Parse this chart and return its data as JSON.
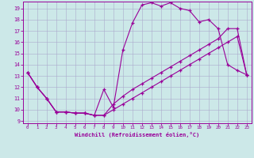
{
  "xlabel": "Windchill (Refroidissement éolien,°C)",
  "bg_color": "#cce8e8",
  "line_color": "#990099",
  "grid_color": "#aaaacc",
  "xlim": [
    -0.5,
    23.5
  ],
  "ylim": [
    8.8,
    19.6
  ],
  "xticks": [
    0,
    1,
    2,
    3,
    4,
    5,
    6,
    7,
    8,
    9,
    10,
    11,
    12,
    13,
    14,
    15,
    16,
    17,
    18,
    19,
    20,
    21,
    22,
    23
  ],
  "yticks": [
    9,
    10,
    11,
    12,
    13,
    14,
    15,
    16,
    17,
    18,
    19
  ],
  "line1": {
    "x": [
      0,
      1,
      2,
      3,
      4,
      5,
      6,
      7,
      8,
      9,
      10,
      11,
      12,
      13,
      14,
      15,
      16,
      17,
      18,
      19,
      20,
      21,
      22,
      23
    ],
    "y": [
      13.3,
      12.0,
      11.0,
      9.8,
      9.8,
      9.7,
      9.7,
      9.5,
      11.8,
      10.2,
      15.3,
      17.7,
      19.3,
      19.5,
      19.2,
      19.5,
      19.0,
      18.8,
      17.8,
      18.0,
      17.2,
      14.0,
      13.5,
      13.1
    ]
  },
  "line2": {
    "x": [
      0,
      1,
      2,
      3,
      4,
      5,
      6,
      7,
      8,
      9,
      10,
      11,
      12,
      13,
      14,
      15,
      16,
      17,
      18,
      19,
      20,
      21,
      22,
      23
    ],
    "y": [
      13.3,
      12.0,
      11.0,
      9.8,
      9.8,
      9.7,
      9.7,
      9.5,
      9.5,
      10.5,
      11.2,
      11.8,
      12.3,
      12.8,
      13.3,
      13.8,
      14.3,
      14.8,
      15.3,
      15.8,
      16.3,
      17.2,
      17.2,
      13.1
    ]
  },
  "line3": {
    "x": [
      0,
      1,
      2,
      3,
      4,
      5,
      6,
      7,
      8,
      9,
      10,
      11,
      12,
      13,
      14,
      15,
      16,
      17,
      18,
      19,
      20,
      21,
      22,
      23
    ],
    "y": [
      13.3,
      12.0,
      11.0,
      9.8,
      9.8,
      9.7,
      9.7,
      9.5,
      9.5,
      10.0,
      10.5,
      11.0,
      11.5,
      12.0,
      12.5,
      13.0,
      13.5,
      14.0,
      14.5,
      15.0,
      15.5,
      16.0,
      16.5,
      13.1
    ]
  }
}
